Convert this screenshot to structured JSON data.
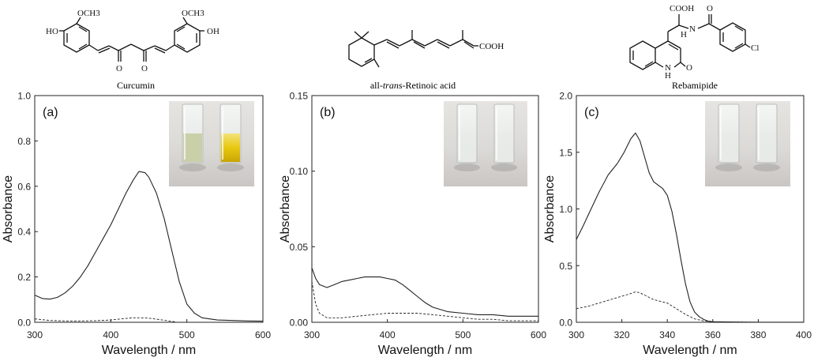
{
  "figure": {
    "panels": [
      {
        "id": "a",
        "label": "(a)",
        "molecule": "Curcumin",
        "photo": "yellow"
      },
      {
        "id": "b",
        "label": "(b)",
        "molecule_prefix": "all-",
        "molecule_italic": "trans",
        "molecule_suffix": "-Retinoic acid",
        "photo": "clear"
      },
      {
        "id": "c",
        "label": "(c)",
        "molecule": "Rebamipide",
        "photo": "clear"
      }
    ],
    "structure_labels": {
      "curcumin": [
        "HO",
        "OCH3",
        "OCH3",
        "OH",
        "O",
        "O"
      ],
      "retinoic": [
        "COOH"
      ],
      "rebamipide": [
        "COOH",
        "H",
        "N",
        "O",
        "Cl",
        "N",
        "H",
        "O"
      ]
    }
  },
  "chart_data": [
    {
      "type": "line",
      "panel_label": "(a)",
      "xlabel": "Wavelength / nm",
      "ylabel": "Absorbance",
      "xlim": [
        300,
        600
      ],
      "ylim": [
        0,
        1.0
      ],
      "xticks": [
        300,
        400,
        500,
        600
      ],
      "yticks": [
        0,
        0.2,
        0.4,
        0.6,
        0.8,
        1.0
      ],
      "xtick_labels": [
        "300",
        "400",
        "500",
        "600"
      ],
      "ytick_labels": [
        "0.0",
        "0.2",
        "0.4",
        "0.6",
        "0.8",
        "1.0"
      ],
      "grid": false,
      "series": [
        {
          "style": "solid",
          "x": [
            300,
            310,
            320,
            330,
            340,
            350,
            360,
            370,
            380,
            390,
            400,
            410,
            420,
            430,
            437,
            445,
            450,
            460,
            470,
            480,
            490,
            500,
            510,
            520,
            540,
            560,
            580,
            600
          ],
          "y": [
            0.12,
            0.105,
            0.102,
            0.11,
            0.13,
            0.16,
            0.2,
            0.25,
            0.31,
            0.37,
            0.43,
            0.5,
            0.57,
            0.63,
            0.665,
            0.66,
            0.64,
            0.57,
            0.46,
            0.32,
            0.18,
            0.08,
            0.04,
            0.02,
            0.01,
            0.008,
            0.006,
            0.005
          ]
        },
        {
          "style": "dashed",
          "x": [
            300,
            320,
            340,
            360,
            380,
            400,
            420,
            430,
            440,
            450,
            460,
            470,
            480,
            485
          ],
          "y": [
            0.015,
            0.008,
            0.006,
            0.006,
            0.007,
            0.01,
            0.017,
            0.02,
            0.02,
            0.018,
            0.014,
            0.009,
            0.004,
            0.002
          ]
        }
      ]
    },
    {
      "type": "line",
      "panel_label": "(b)",
      "xlabel": "Wavelength / nm",
      "ylabel": "Absorbance",
      "xlim": [
        300,
        600
      ],
      "ylim": [
        0,
        0.15
      ],
      "xticks": [
        300,
        400,
        500,
        600
      ],
      "yticks": [
        0,
        0.05,
        0.1,
        0.15
      ],
      "xtick_labels": [
        "300",
        "400",
        "500",
        "600"
      ],
      "ytick_labels": [
        "0.00",
        "0.05",
        "0.10",
        "0.15"
      ],
      "grid": false,
      "series": [
        {
          "style": "solid",
          "x": [
            300,
            305,
            310,
            320,
            330,
            340,
            350,
            360,
            370,
            380,
            390,
            400,
            410,
            420,
            430,
            440,
            450,
            460,
            480,
            500,
            520,
            540,
            560,
            580,
            600
          ],
          "y": [
            0.036,
            0.029,
            0.025,
            0.023,
            0.025,
            0.027,
            0.028,
            0.029,
            0.03,
            0.03,
            0.03,
            0.029,
            0.028,
            0.025,
            0.021,
            0.017,
            0.013,
            0.01,
            0.007,
            0.006,
            0.005,
            0.005,
            0.004,
            0.004,
            0.004
          ]
        },
        {
          "style": "dashed",
          "x": [
            300,
            305,
            310,
            320,
            330,
            340,
            360,
            380,
            400,
            420,
            440,
            460,
            480,
            500,
            520,
            540,
            560,
            580,
            600
          ],
          "y": [
            0.027,
            0.012,
            0.006,
            0.003,
            0.003,
            0.003,
            0.004,
            0.005,
            0.006,
            0.006,
            0.006,
            0.005,
            0.004,
            0.003,
            0.002,
            0.002,
            0.001,
            0.001,
            0.001
          ]
        }
      ]
    },
    {
      "type": "line",
      "panel_label": "(c)",
      "xlabel": "Wavelength / nm",
      "ylabel": "Absorbance",
      "xlim": [
        300,
        400
      ],
      "ylim": [
        0,
        2.0
      ],
      "xticks": [
        300,
        320,
        340,
        360,
        380,
        400
      ],
      "yticks": [
        0,
        0.5,
        1.0,
        1.5,
        2.0
      ],
      "xtick_labels": [
        "300",
        "320",
        "340",
        "360",
        "380",
        "400"
      ],
      "ytick_labels": [
        "0.0",
        "0.5",
        "1.0",
        "1.5",
        "2.0"
      ],
      "grid": false,
      "series": [
        {
          "style": "solid",
          "x": [
            300,
            303,
            306,
            310,
            314,
            318,
            321,
            324,
            326,
            328,
            330,
            332,
            334,
            336,
            338,
            340,
            342,
            344,
            346,
            348,
            350,
            352,
            354,
            356,
            358,
            360,
            370,
            380,
            390,
            400
          ],
          "y": [
            0.73,
            0.85,
            0.98,
            1.15,
            1.3,
            1.4,
            1.5,
            1.62,
            1.67,
            1.6,
            1.46,
            1.32,
            1.24,
            1.21,
            1.18,
            1.12,
            0.98,
            0.78,
            0.55,
            0.34,
            0.18,
            0.09,
            0.05,
            0.025,
            0.01,
            0.005,
            0.002,
            0.001,
            0.001,
            0.001
          ]
        },
        {
          "style": "dashed",
          "x": [
            300,
            305,
            310,
            315,
            320,
            325,
            326,
            328,
            330,
            334,
            338,
            340,
            344,
            348,
            352,
            356,
            360,
            370,
            380,
            400
          ],
          "y": [
            0.12,
            0.14,
            0.17,
            0.2,
            0.23,
            0.26,
            0.27,
            0.26,
            0.24,
            0.2,
            0.18,
            0.17,
            0.12,
            0.07,
            0.03,
            0.012,
            0.005,
            0.002,
            0.001,
            0.001
          ]
        }
      ]
    }
  ]
}
